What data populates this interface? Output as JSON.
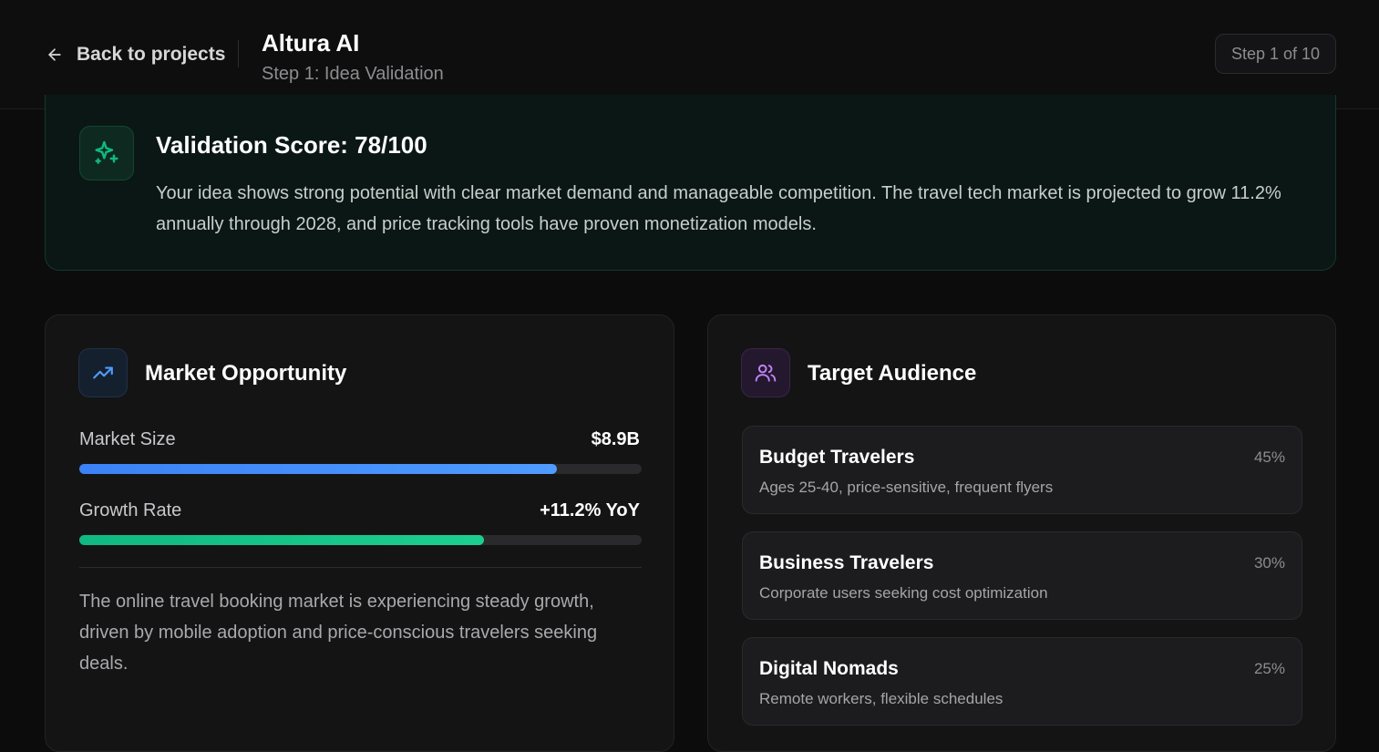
{
  "header": {
    "back_label": "Back to projects",
    "project_title": "Altura AI",
    "step_subtitle": "Step 1: Idea Validation",
    "step_badge": "Step 1 of 10"
  },
  "validation": {
    "title": "Validation Score: 78/100",
    "score": 78,
    "max_score": 100,
    "description": "Your idea shows strong potential with clear market demand and manageable competition. The travel tech market is projected to grow 11.2% annually through 2028, and price tracking tools have proven monetization models."
  },
  "market": {
    "title": "Market Opportunity",
    "metrics": [
      {
        "label": "Market Size",
        "value": "$8.9B",
        "fill": 0.85
      },
      {
        "label": "Growth Rate",
        "value": "+11.2% YoY",
        "fill": 0.72
      }
    ],
    "description": "The online travel booking market is experiencing steady growth, driven by mobile adoption and price-conscious travelers seeking deals."
  },
  "audience": {
    "title": "Target Audience",
    "segments": [
      {
        "name": "Budget Travelers",
        "description": "Ages 25-40, price-sensitive, frequent flyers",
        "share": "45%"
      },
      {
        "name": "Business Travelers",
        "description": "Corporate users seeking cost optimization",
        "share": "30%"
      },
      {
        "name": "Digital Nomads",
        "description": "Remote workers, flexible schedules",
        "share": "25%"
      }
    ]
  },
  "colors": {
    "accent_green": "#10b981",
    "accent_blue": "#3b82f6",
    "accent_purple": "#c084fc"
  },
  "icons": {
    "back": "arrow-left-icon",
    "validation": "sparkles-icon",
    "market": "trending-up-icon",
    "audience": "users-icon"
  }
}
